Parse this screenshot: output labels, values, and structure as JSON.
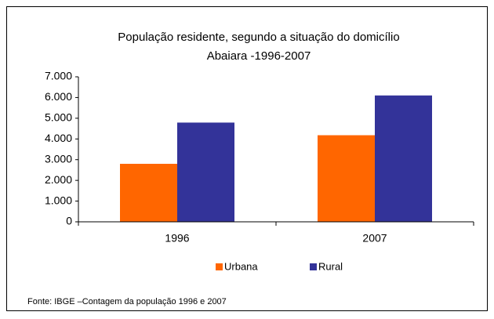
{
  "chart_data": {
    "type": "bar",
    "title": "População residente, segundo a situação do domicílio",
    "subtitle": "Abaiara -1996-2007",
    "categories": [
      "1996",
      "2007"
    ],
    "series": [
      {
        "name": "Urbana",
        "color": "#ff6600",
        "values": [
          2800,
          4180
        ]
      },
      {
        "name": "Rural",
        "color": "#333399",
        "values": [
          4790,
          6100
        ]
      }
    ],
    "ylim": [
      0,
      7000
    ],
    "yticks": [
      0,
      {
        "value": 1000,
        "label": "1.000"
      },
      {
        "value": 2000,
        "label": "2.000"
      },
      {
        "value": 3000,
        "label": "3.000"
      },
      {
        "value": 4000,
        "label": "4.000"
      },
      {
        "value": 5000,
        "label": "5.000"
      },
      {
        "value": 6000,
        "label": "6.000"
      },
      {
        "value": 7000,
        "label": "7.000"
      }
    ],
    "grid": false,
    "legend": "bottom",
    "note": "Fonte: IBGE –Contagem da população 1996 e 2007"
  }
}
